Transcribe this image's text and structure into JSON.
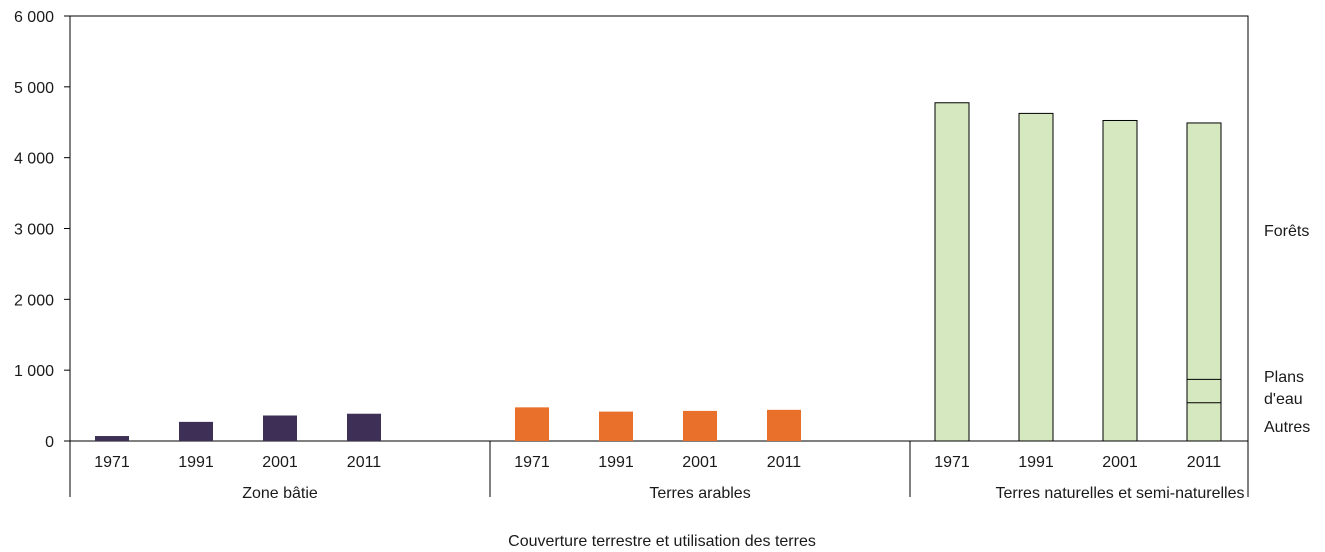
{
  "chart_data": {
    "type": "bar",
    "xlabel": "Couverture terrestre et utilisation des terres",
    "ylabel": "",
    "ylim": [
      0,
      6000
    ],
    "yticks": [
      0,
      1000,
      2000,
      3000,
      4000,
      5000,
      6000
    ],
    "ytick_labels": [
      "0",
      "1 000",
      "2 000",
      "3 000",
      "4 000",
      "5 000",
      "6 000"
    ],
    "grid": false,
    "groups": [
      {
        "label": "Zone bâtie",
        "color": "#3d2f55",
        "categories": [
          "1971",
          "1991",
          "2001",
          "2011"
        ],
        "values": [
          70,
          270,
          360,
          385
        ]
      },
      {
        "label": "Terres arables",
        "color": "#e8702a",
        "categories": [
          "1971",
          "1991",
          "2001",
          "2011"
        ],
        "values": [
          475,
          415,
          425,
          440
        ]
      },
      {
        "label": "Terres naturelles et semi-naturelles",
        "color": "#d6e8bf",
        "categories": [
          "1971",
          "1991",
          "2001",
          "2011"
        ],
        "values": [
          4775,
          4625,
          4525,
          4490
        ],
        "breakdown_2011": [
          {
            "name": "Autres",
            "value": 540
          },
          {
            "name": "Plans d'eau",
            "value": 330
          },
          {
            "name": "Forêts",
            "value": 3620
          }
        ]
      }
    ],
    "annotations": [
      "Forêts",
      "Plans",
      "d'eau",
      "Autres"
    ]
  }
}
